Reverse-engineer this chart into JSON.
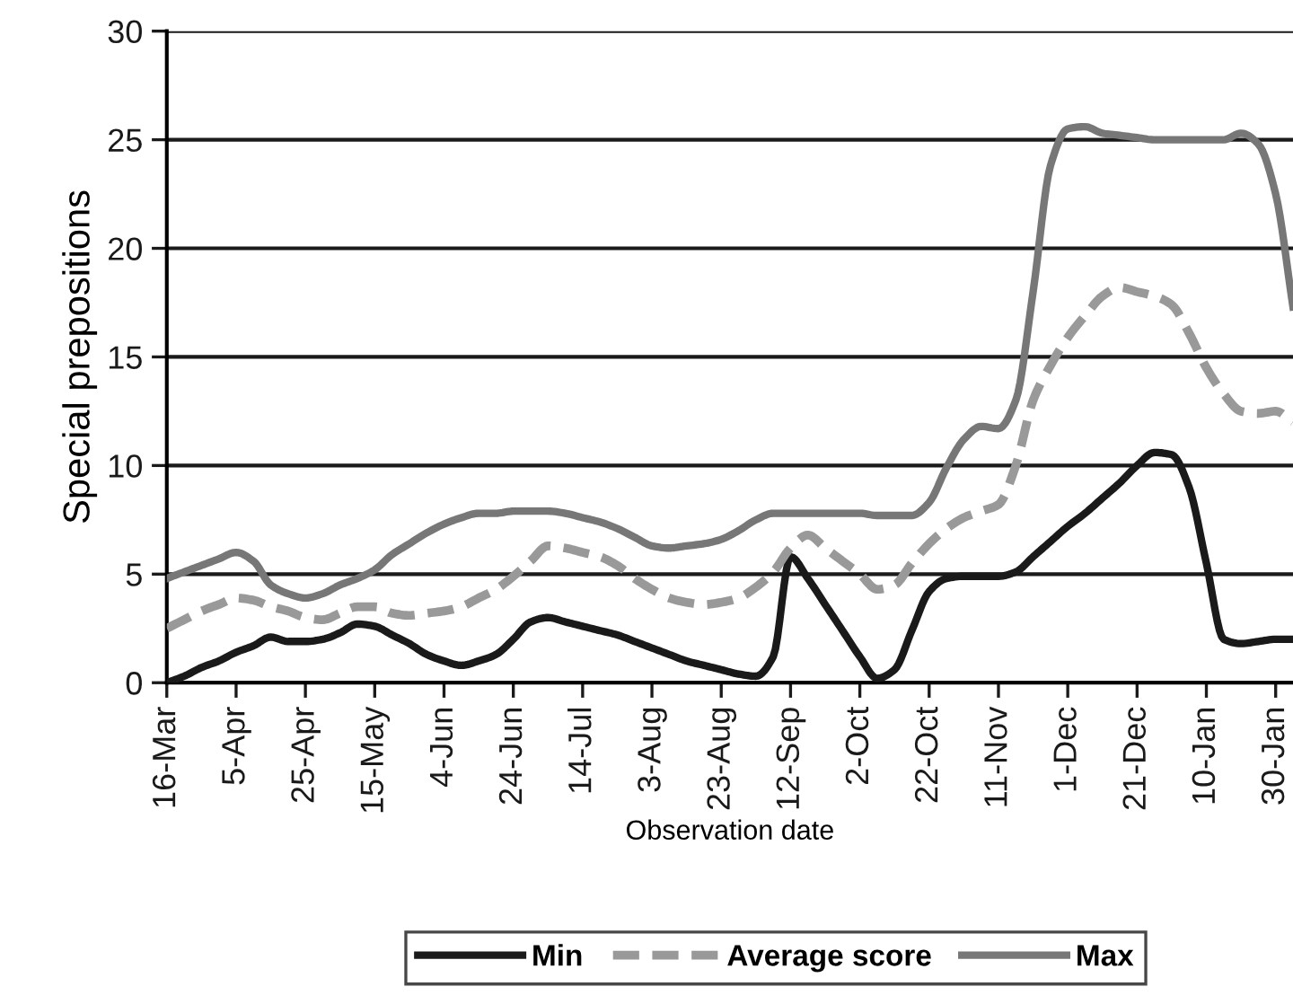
{
  "chart_data": {
    "type": "line",
    "xlabel": "Observation date",
    "ylabel": "Special prepositions",
    "ylim": [
      0,
      30
    ],
    "yticks": [
      0,
      5,
      10,
      15,
      20,
      25,
      30
    ],
    "categories": [
      "16-Mar",
      null,
      null,
      null,
      "5-Apr",
      null,
      null,
      null,
      "25-Apr",
      null,
      null,
      null,
      "15-May",
      null,
      null,
      null,
      "4-Jun",
      null,
      null,
      null,
      "24-Jun",
      null,
      null,
      null,
      "14-Jul",
      null,
      null,
      null,
      "3-Aug",
      null,
      null,
      null,
      "23-Aug",
      null,
      null,
      null,
      "12-Sep",
      null,
      null,
      null,
      "2-Oct",
      null,
      null,
      null,
      "22-Oct",
      null,
      null,
      null,
      "11-Nov",
      null,
      null,
      null,
      "1-Dec",
      null,
      null,
      null,
      "21-Dec",
      null,
      null,
      null,
      "10-Jan",
      null,
      null,
      null,
      "30-Jan",
      null
    ],
    "grid": "y",
    "legend": "bottom",
    "marker": "none",
    "series": [
      {
        "name": "Min",
        "color": "#1a1a1a",
        "line_style": "solid",
        "values": [
          0,
          0.3,
          0.7,
          1.0,
          1.4,
          1.7,
          2.1,
          1.9,
          1.9,
          2.0,
          2.3,
          2.7,
          2.6,
          2.2,
          1.8,
          1.3,
          1.0,
          0.8,
          1.0,
          1.3,
          2.0,
          2.8,
          3.0,
          2.8,
          2.6,
          2.4,
          2.2,
          1.9,
          1.6,
          1.3,
          1.0,
          0.8,
          0.6,
          0.4,
          0.3,
          1.2,
          5.8,
          4.8,
          3.6,
          2.4,
          1.2,
          0.2,
          0.6,
          2.4,
          4.2,
          4.8,
          4.9,
          4.9,
          4.9,
          5.1,
          5.8,
          6.5,
          7.2,
          7.8,
          8.5,
          9.2,
          10.0,
          10.6,
          10.5,
          9.0,
          5.5,
          2.0,
          1.8,
          1.9,
          2.0,
          2.0
        ]
      },
      {
        "name": "Average score",
        "color": "#999999",
        "line_style": "dashed",
        "values": [
          2.5,
          2.9,
          3.3,
          3.6,
          3.9,
          3.8,
          3.5,
          3.3,
          3.0,
          2.9,
          3.2,
          3.5,
          3.5,
          3.2,
          3.1,
          3.2,
          3.3,
          3.5,
          3.9,
          4.3,
          4.9,
          5.6,
          6.3,
          6.2,
          6.0,
          5.8,
          5.4,
          4.8,
          4.3,
          3.9,
          3.7,
          3.6,
          3.7,
          3.9,
          4.4,
          5.1,
          6.2,
          6.8,
          6.2,
          5.6,
          5.0,
          4.3,
          4.5,
          5.5,
          6.4,
          7.1,
          7.6,
          7.9,
          8.2,
          10.0,
          13.0,
          14.6,
          15.9,
          16.9,
          17.8,
          18.2,
          18.0,
          17.8,
          17.4,
          16.1,
          14.5,
          13.3,
          12.5,
          12.4,
          12.5,
          12.0
        ]
      },
      {
        "name": "Max",
        "color": "#777777",
        "line_style": "solid",
        "values": [
          4.8,
          5.1,
          5.4,
          5.7,
          6.0,
          5.6,
          4.5,
          4.1,
          3.9,
          4.1,
          4.5,
          4.8,
          5.2,
          5.9,
          6.4,
          6.9,
          7.3,
          7.6,
          7.8,
          7.8,
          7.9,
          7.9,
          7.9,
          7.8,
          7.6,
          7.4,
          7.1,
          6.7,
          6.3,
          6.2,
          6.3,
          6.4,
          6.6,
          7.0,
          7.5,
          7.8,
          7.8,
          7.8,
          7.8,
          7.8,
          7.8,
          7.7,
          7.7,
          7.7,
          8.3,
          9.9,
          11.2,
          11.8,
          11.7,
          13.0,
          18.0,
          23.8,
          25.5,
          25.6,
          25.3,
          25.2,
          25.1,
          25.0,
          25.0,
          25.0,
          25.0,
          25.0,
          25.3,
          24.8,
          22.5,
          17.3
        ]
      }
    ]
  }
}
